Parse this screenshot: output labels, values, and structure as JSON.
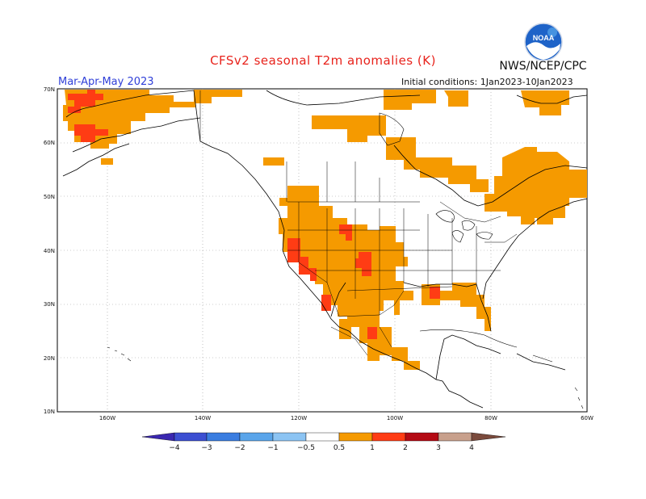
{
  "title": "CFSv2 seasonal T2m anomalies (K)",
  "organization": "NWS/NCEP/CPC",
  "logo_text": "NOAA",
  "period": "Mar-Apr-May 2023",
  "initial_conditions": "Initial conditions: 1Jan2023-10Jan2023",
  "lat_labels": [
    "70N",
    "60N",
    "50N",
    "40N",
    "30N",
    "20N",
    "10N"
  ],
  "lon_labels": [
    "160W",
    "140W",
    "120W",
    "100W",
    "80W",
    "60W"
  ],
  "colorbar": {
    "labels": [
      "−4",
      "−3",
      "−2",
      "−1",
      "−0.5",
      "0.5",
      "1",
      "2",
      "3",
      "4"
    ],
    "colors": [
      "#3a27b0",
      "#3c4fd2",
      "#3a7de0",
      "#5aa5ea",
      "#8cc4f3",
      "#ffffff",
      "#f59a00",
      "#ff3c14",
      "#b40a14",
      "#c8a08c",
      "#7a4a3c"
    ]
  },
  "anomaly_colors": {
    "0.5_to_1": "#f59a00",
    "1_to_2": "#ff3c14"
  }
}
